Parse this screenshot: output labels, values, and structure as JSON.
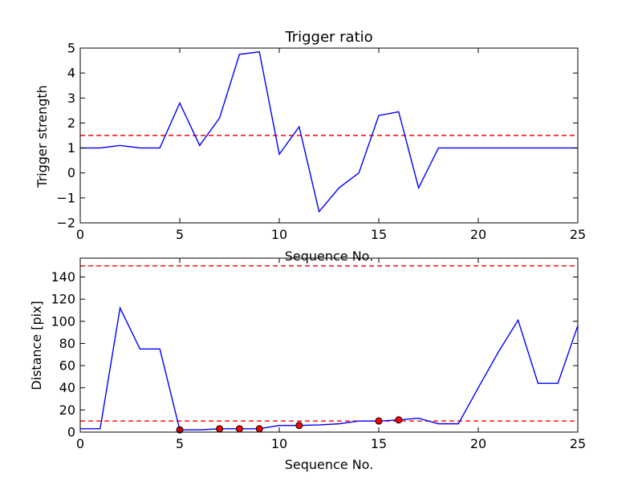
{
  "chart_data": [
    {
      "type": "line",
      "title": "Trigger ratio",
      "xlabel": "Sequence No.",
      "ylabel": "Trigger strength",
      "xlim": [
        0,
        25
      ],
      "ylim": [
        -2,
        5
      ],
      "xticks": [
        0,
        5,
        10,
        15,
        20,
        25
      ],
      "yticks": [
        -2,
        -1,
        0,
        1,
        2,
        3,
        4,
        5
      ],
      "xtick_labels": [
        "0",
        "5",
        "10",
        "15",
        "20",
        "25"
      ],
      "ytick_labels": [
        "−2",
        "−1",
        "0",
        "1",
        "2",
        "3",
        "4",
        "5"
      ],
      "grid": false,
      "series": [
        {
          "color": "#0000ff",
          "x": [
            0,
            1,
            2,
            3,
            4,
            5,
            6,
            7,
            8,
            9,
            10,
            11,
            12,
            13,
            14,
            15,
            16,
            17,
            18,
            19,
            20,
            21,
            22,
            23,
            24,
            25
          ],
          "y": [
            1.0,
            1.0,
            1.1,
            1.0,
            1.0,
            2.8,
            1.1,
            2.2,
            4.75,
            4.85,
            0.75,
            1.85,
            -1.55,
            -0.6,
            0.0,
            2.3,
            2.45,
            -0.6,
            1.0,
            1.0,
            1.0,
            1.0,
            1.0,
            1.0,
            1.0,
            1.0
          ]
        }
      ],
      "reference_lines": [
        {
          "y": 1.5,
          "color": "#ff0000",
          "style": "dashed"
        }
      ]
    },
    {
      "type": "line",
      "title": "",
      "xlabel": "Sequence No.",
      "ylabel": "Distance [pix]",
      "xlim": [
        0,
        25
      ],
      "ylim": [
        0,
        157
      ],
      "xticks": [
        0,
        5,
        10,
        15,
        20,
        25
      ],
      "yticks": [
        0,
        20,
        40,
        60,
        80,
        100,
        120,
        140
      ],
      "xtick_labels": [
        "0",
        "5",
        "10",
        "15",
        "20",
        "25"
      ],
      "ytick_labels": [
        "0",
        "20",
        "40",
        "60",
        "80",
        "100",
        "120",
        "140"
      ],
      "grid": false,
      "series": [
        {
          "color": "#0000ff",
          "x": [
            0,
            1,
            2,
            3,
            4,
            5,
            6,
            7,
            8,
            9,
            10,
            11,
            12,
            13,
            14,
            15,
            16,
            17,
            18,
            19,
            20,
            21,
            22,
            23,
            24,
            25
          ],
          "y": [
            3,
            3,
            112,
            75,
            75,
            2,
            2,
            3,
            3,
            3,
            6,
            6,
            6.5,
            7.5,
            10,
            10,
            11,
            12.5,
            7.5,
            7.5,
            40,
            72,
            101,
            44,
            44,
            96
          ]
        }
      ],
      "markers": {
        "color": "#ff0000",
        "x": [
          5,
          7,
          8,
          9,
          11,
          15,
          16
        ],
        "y": [
          2,
          3,
          3,
          3,
          6,
          10,
          11
        ]
      },
      "reference_lines": [
        {
          "y": 150,
          "color": "#ff0000",
          "style": "dashed"
        },
        {
          "y": 10,
          "color": "#ff0000",
          "style": "dashed"
        }
      ]
    }
  ]
}
